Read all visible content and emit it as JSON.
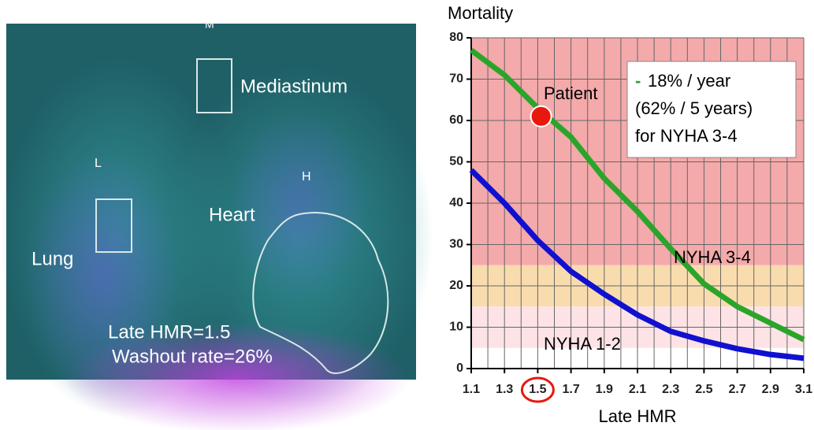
{
  "image": {
    "labels": {
      "m": "M",
      "mediastinum": "Mediastinum",
      "l": "L",
      "h": "H",
      "heart": "Heart",
      "lung": "Lung",
      "hmr": "Late HMR=1.5",
      "washout": "Washout rate=26%"
    }
  },
  "chart_data": {
    "type": "line",
    "ylabel": "Mortality",
    "xlabel": "Late HMR",
    "x": [
      1.1,
      1.3,
      1.5,
      1.7,
      1.9,
      2.1,
      2.3,
      2.5,
      2.7,
      2.9,
      3.1
    ],
    "xlim": [
      1.1,
      3.1
    ],
    "xticks": [
      1.1,
      1.3,
      1.5,
      1.7,
      1.9,
      2.1,
      2.3,
      2.5,
      2.7,
      2.9,
      3.1
    ],
    "xminor": [
      1.2,
      1.4,
      1.6,
      1.8,
      2.0,
      2.2,
      2.4,
      2.6,
      2.8,
      3.0
    ],
    "ylim": [
      0,
      80
    ],
    "yticks": [
      0,
      10,
      20,
      30,
      40,
      50,
      60,
      70,
      80
    ],
    "grid": true,
    "bands": [
      {
        "from": 25,
        "to": 80,
        "color": "#f4a9aa"
      },
      {
        "from": 15,
        "to": 25,
        "color": "#f9dcae"
      },
      {
        "from": 5,
        "to": 15,
        "color": "#fde3e6"
      }
    ],
    "series": [
      {
        "name": "NYHA 3-4",
        "color": "#2aa52a",
        "values": [
          77,
          71,
          63,
          56,
          46,
          38,
          29,
          20.5,
          15,
          11,
          7
        ]
      },
      {
        "name": "NYHA 1-2",
        "color": "#1010d0",
        "values": [
          48,
          40,
          31,
          23.5,
          18,
          13,
          9,
          6.7,
          4.8,
          3.4,
          2.5
        ]
      }
    ],
    "point": {
      "label": "Patient",
      "x": 1.52,
      "y": 61,
      "color": "#e8180f"
    },
    "annotation": {
      "dash": "-",
      "lines": [
        "18% / year",
        "(62% / 5 years)",
        "for NYHA 3-4"
      ]
    }
  }
}
